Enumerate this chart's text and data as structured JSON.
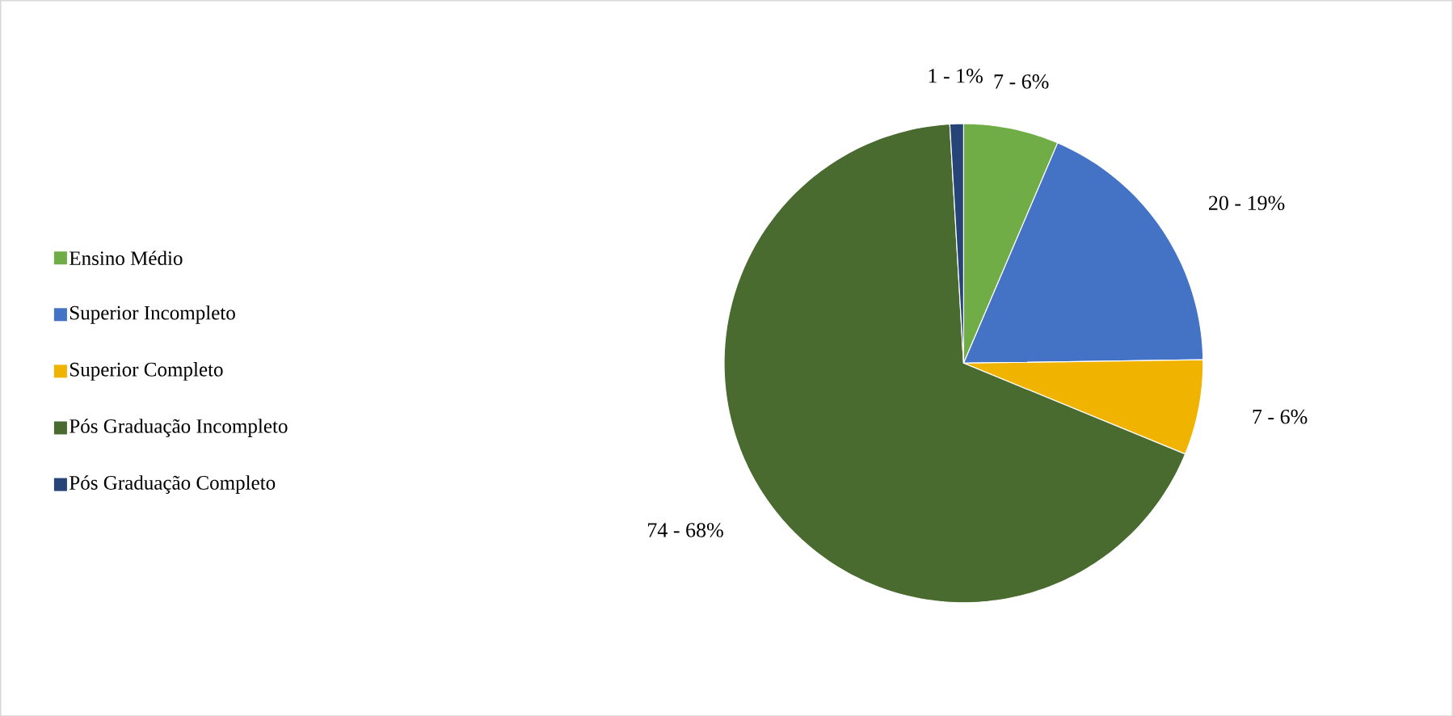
{
  "chart_data": {
    "type": "pie",
    "categories": [
      "Ensino Médio",
      "Superior Incompleto",
      "Superior Completo",
      "Pós Graduação Incompleto",
      "Pós Graduação Completo"
    ],
    "values": [
      7,
      20,
      7,
      74,
      1
    ],
    "value_labels": [
      "7 - 6%",
      "20 - 19%",
      "7 - 6%",
      "74 - 68%",
      "1 - 1%"
    ],
    "colors": [
      "#70ad47",
      "#4472c4",
      "#f0b400",
      "#4a6b2f",
      "#264478"
    ],
    "legend": "left"
  }
}
